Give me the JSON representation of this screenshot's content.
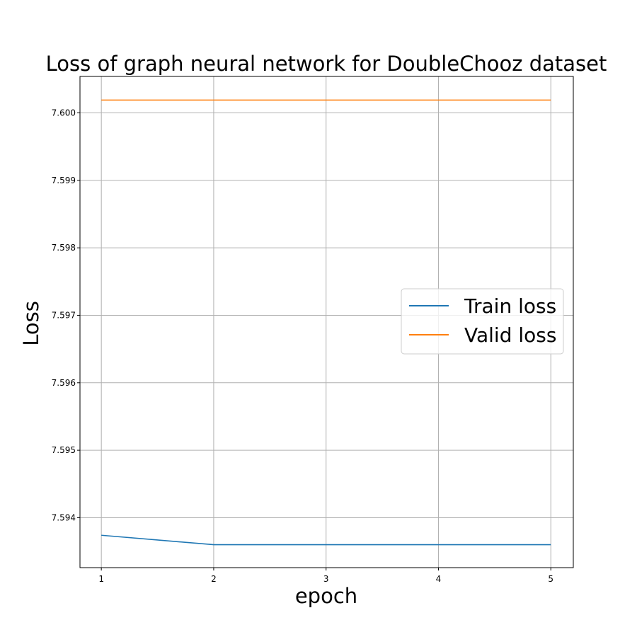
{
  "chart_data": {
    "type": "line",
    "title": "Loss of graph neural network for DoubleChooz dataset",
    "xlabel": "epoch",
    "ylabel": "Loss",
    "x": [
      1,
      2,
      3,
      4,
      5
    ],
    "xticks": [
      "1",
      "2",
      "3",
      "4",
      "5"
    ],
    "yticks": [
      "7.594",
      "7.595",
      "7.596",
      "7.597",
      "7.598",
      "7.599",
      "7.600"
    ],
    "ytick_values": [
      7.594,
      7.595,
      7.596,
      7.597,
      7.598,
      7.599,
      7.6
    ],
    "xlim": [
      0.81,
      5.2
    ],
    "ylim": [
      7.59326,
      7.60054
    ],
    "grid": true,
    "legend_position": "center-right",
    "series": [
      {
        "name": "Train loss",
        "color": "#1f77b4",
        "values": [
          7.59374,
          7.5936,
          7.5936,
          7.5936,
          7.5936
        ]
      },
      {
        "name": "Valid loss",
        "color": "#ff7f0e",
        "values": [
          7.60019,
          7.60019,
          7.60019,
          7.60019,
          7.60019
        ]
      }
    ]
  }
}
